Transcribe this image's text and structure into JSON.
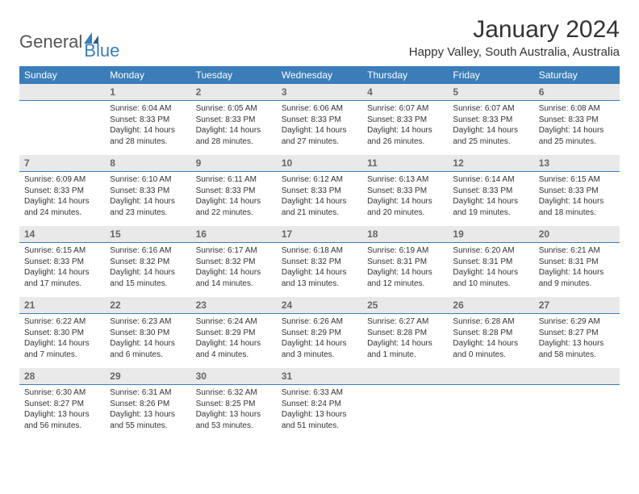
{
  "logo": {
    "text1": "General",
    "text2": "Blue"
  },
  "header": {
    "month": "January 2024",
    "location": "Happy Valley, South Australia, Australia"
  },
  "colors": {
    "header_bar": "#3a7db8",
    "daynum_bg": "#e9e9e9",
    "daynum_border": "#3a7db8",
    "text": "#333333",
    "logo_gray": "#555555",
    "logo_blue": "#3a7db8",
    "bg": "#ffffff"
  },
  "days_of_week": [
    "Sunday",
    "Monday",
    "Tuesday",
    "Wednesday",
    "Thursday",
    "Friday",
    "Saturday"
  ],
  "weeks": [
    {
      "nums": [
        "",
        "1",
        "2",
        "3",
        "4",
        "5",
        "6"
      ],
      "cells": [
        null,
        {
          "sunrise": "6:04 AM",
          "sunset": "8:33 PM",
          "day_h": 14,
          "day_m": 28,
          "day_text": "Daylight: 14 hours and 28 minutes."
        },
        {
          "sunrise": "6:05 AM",
          "sunset": "8:33 PM",
          "day_h": 14,
          "day_m": 28,
          "day_text": "Daylight: 14 hours and 28 minutes."
        },
        {
          "sunrise": "6:06 AM",
          "sunset": "8:33 PM",
          "day_h": 14,
          "day_m": 27,
          "day_text": "Daylight: 14 hours and 27 minutes."
        },
        {
          "sunrise": "6:07 AM",
          "sunset": "8:33 PM",
          "day_h": 14,
          "day_m": 26,
          "day_text": "Daylight: 14 hours and 26 minutes."
        },
        {
          "sunrise": "6:07 AM",
          "sunset": "8:33 PM",
          "day_h": 14,
          "day_m": 25,
          "day_text": "Daylight: 14 hours and 25 minutes."
        },
        {
          "sunrise": "6:08 AM",
          "sunset": "8:33 PM",
          "day_h": 14,
          "day_m": 25,
          "day_text": "Daylight: 14 hours and 25 minutes."
        }
      ]
    },
    {
      "nums": [
        "7",
        "8",
        "9",
        "10",
        "11",
        "12",
        "13"
      ],
      "cells": [
        {
          "sunrise": "6:09 AM",
          "sunset": "8:33 PM",
          "day_h": 14,
          "day_m": 24,
          "day_text": "Daylight: 14 hours and 24 minutes."
        },
        {
          "sunrise": "6:10 AM",
          "sunset": "8:33 PM",
          "day_h": 14,
          "day_m": 23,
          "day_text": "Daylight: 14 hours and 23 minutes."
        },
        {
          "sunrise": "6:11 AM",
          "sunset": "8:33 PM",
          "day_h": 14,
          "day_m": 22,
          "day_text": "Daylight: 14 hours and 22 minutes."
        },
        {
          "sunrise": "6:12 AM",
          "sunset": "8:33 PM",
          "day_h": 14,
          "day_m": 21,
          "day_text": "Daylight: 14 hours and 21 minutes."
        },
        {
          "sunrise": "6:13 AM",
          "sunset": "8:33 PM",
          "day_h": 14,
          "day_m": 20,
          "day_text": "Daylight: 14 hours and 20 minutes."
        },
        {
          "sunrise": "6:14 AM",
          "sunset": "8:33 PM",
          "day_h": 14,
          "day_m": 19,
          "day_text": "Daylight: 14 hours and 19 minutes."
        },
        {
          "sunrise": "6:15 AM",
          "sunset": "8:33 PM",
          "day_h": 14,
          "day_m": 18,
          "day_text": "Daylight: 14 hours and 18 minutes."
        }
      ]
    },
    {
      "nums": [
        "14",
        "15",
        "16",
        "17",
        "18",
        "19",
        "20"
      ],
      "cells": [
        {
          "sunrise": "6:15 AM",
          "sunset": "8:33 PM",
          "day_h": 14,
          "day_m": 17,
          "day_text": "Daylight: 14 hours and 17 minutes."
        },
        {
          "sunrise": "6:16 AM",
          "sunset": "8:32 PM",
          "day_h": 14,
          "day_m": 15,
          "day_text": "Daylight: 14 hours and 15 minutes."
        },
        {
          "sunrise": "6:17 AM",
          "sunset": "8:32 PM",
          "day_h": 14,
          "day_m": 14,
          "day_text": "Daylight: 14 hours and 14 minutes."
        },
        {
          "sunrise": "6:18 AM",
          "sunset": "8:32 PM",
          "day_h": 14,
          "day_m": 13,
          "day_text": "Daylight: 14 hours and 13 minutes."
        },
        {
          "sunrise": "6:19 AM",
          "sunset": "8:31 PM",
          "day_h": 14,
          "day_m": 12,
          "day_text": "Daylight: 14 hours and 12 minutes."
        },
        {
          "sunrise": "6:20 AM",
          "sunset": "8:31 PM",
          "day_h": 14,
          "day_m": 10,
          "day_text": "Daylight: 14 hours and 10 minutes."
        },
        {
          "sunrise": "6:21 AM",
          "sunset": "8:31 PM",
          "day_h": 14,
          "day_m": 9,
          "day_text": "Daylight: 14 hours and 9 minutes."
        }
      ]
    },
    {
      "nums": [
        "21",
        "22",
        "23",
        "24",
        "25",
        "26",
        "27"
      ],
      "cells": [
        {
          "sunrise": "6:22 AM",
          "sunset": "8:30 PM",
          "day_h": 14,
          "day_m": 7,
          "day_text": "Daylight: 14 hours and 7 minutes."
        },
        {
          "sunrise": "6:23 AM",
          "sunset": "8:30 PM",
          "day_h": 14,
          "day_m": 6,
          "day_text": "Daylight: 14 hours and 6 minutes."
        },
        {
          "sunrise": "6:24 AM",
          "sunset": "8:29 PM",
          "day_h": 14,
          "day_m": 4,
          "day_text": "Daylight: 14 hours and 4 minutes."
        },
        {
          "sunrise": "6:26 AM",
          "sunset": "8:29 PM",
          "day_h": 14,
          "day_m": 3,
          "day_text": "Daylight: 14 hours and 3 minutes."
        },
        {
          "sunrise": "6:27 AM",
          "sunset": "8:28 PM",
          "day_h": 14,
          "day_m": 1,
          "day_text": "Daylight: 14 hours and 1 minute."
        },
        {
          "sunrise": "6:28 AM",
          "sunset": "8:28 PM",
          "day_h": 14,
          "day_m": 0,
          "day_text": "Daylight: 14 hours and 0 minutes."
        },
        {
          "sunrise": "6:29 AM",
          "sunset": "8:27 PM",
          "day_h": 13,
          "day_m": 58,
          "day_text": "Daylight: 13 hours and 58 minutes."
        }
      ]
    },
    {
      "nums": [
        "28",
        "29",
        "30",
        "31",
        "",
        "",
        ""
      ],
      "cells": [
        {
          "sunrise": "6:30 AM",
          "sunset": "8:27 PM",
          "day_h": 13,
          "day_m": 56,
          "day_text": "Daylight: 13 hours and 56 minutes."
        },
        {
          "sunrise": "6:31 AM",
          "sunset": "8:26 PM",
          "day_h": 13,
          "day_m": 55,
          "day_text": "Daylight: 13 hours and 55 minutes."
        },
        {
          "sunrise": "6:32 AM",
          "sunset": "8:25 PM",
          "day_h": 13,
          "day_m": 53,
          "day_text": "Daylight: 13 hours and 53 minutes."
        },
        {
          "sunrise": "6:33 AM",
          "sunset": "8:24 PM",
          "day_h": 13,
          "day_m": 51,
          "day_text": "Daylight: 13 hours and 51 minutes."
        },
        null,
        null,
        null
      ]
    }
  ],
  "labels": {
    "sunrise_prefix": "Sunrise: ",
    "sunset_prefix": "Sunset: "
  }
}
